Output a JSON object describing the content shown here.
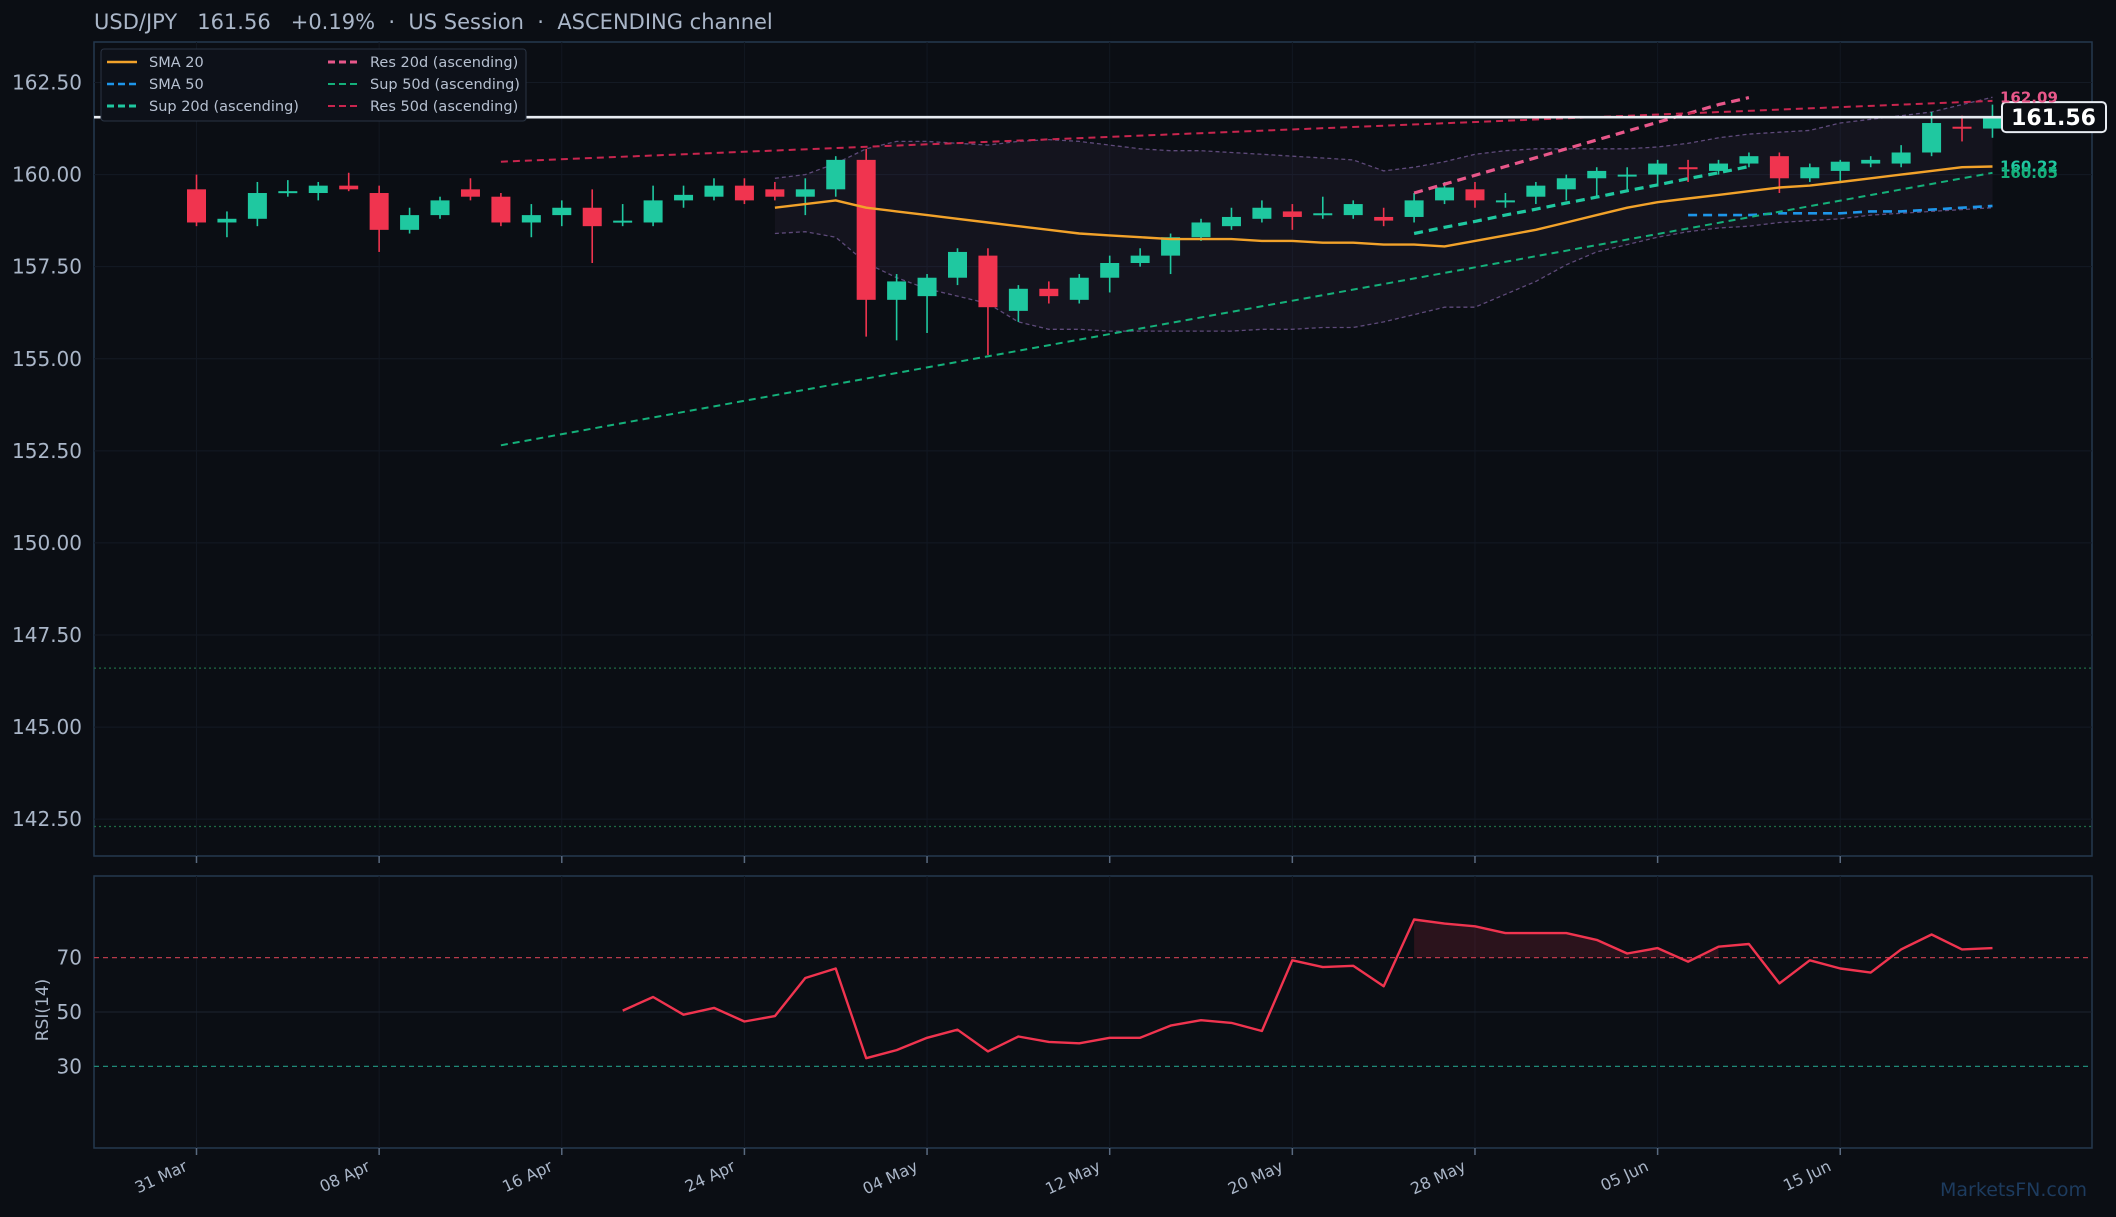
{
  "header": {
    "symbol": "USD/JPY",
    "price": "161.56",
    "change": "+0.19%",
    "session": "US Session",
    "channel": "ASCENDING channel"
  },
  "watermark": "MarketsFN.com",
  "colors": {
    "bg": "#0b0e14",
    "up": "#1fc8a0",
    "down": "#f0344f",
    "sma20": "#f2a22a",
    "sma50": "#1e96ea",
    "res20": "#e8578a",
    "sup20": "#1fc8a0",
    "res50": "#c8254e",
    "sup50": "#14b07a",
    "rsi": "#f0344f"
  },
  "chart_data": [
    {
      "type": "candlestick",
      "title": "USD/JPY 161.56 +0.19% · US Session · ASCENDING channel",
      "ylim": [
        141.5,
        163.6
      ],
      "yticks": [
        "162.50",
        "160.00",
        "157.50",
        "155.00",
        "152.50",
        "150.00",
        "147.50",
        "145.00",
        "142.50"
      ],
      "ytick_values": [
        162.5,
        160.0,
        157.5,
        155.0,
        152.5,
        150.0,
        147.5,
        145.0,
        142.5
      ],
      "xticks": [
        "31 Mar",
        "08 Apr",
        "16 Apr",
        "24 Apr",
        "04 May",
        "12 May",
        "20 May",
        "28 May",
        "05 Jun",
        "15 Jun"
      ],
      "xtick_index": [
        0,
        6,
        12,
        18,
        24,
        30,
        36,
        42,
        48,
        54
      ],
      "legend": {
        "position": "top-left",
        "entries": [
          "SMA 20",
          "Res 20d (ascending)",
          "SMA 50",
          "Sup 50d (ascending)",
          "Sup 20d (ascending)",
          "Res 50d (ascending)"
        ]
      },
      "last_price": 161.56,
      "last_price_label": "161.56",
      "end_labels": [
        {
          "text": "162.09",
          "value": 162.09,
          "series": "Res 20d (ascending)"
        },
        {
          "text": "160.22",
          "value": 160.22,
          "series": "Sup 20d (ascending)"
        },
        {
          "text": "160.05",
          "value": 160.05,
          "series": "Sup 50d (ascending)"
        }
      ],
      "reference_lines": [
        146.6,
        142.3
      ],
      "candles": [
        {
          "o": 159.6,
          "h": 160.0,
          "l": 158.6,
          "c": 158.7
        },
        {
          "o": 158.7,
          "h": 159.0,
          "l": 158.3,
          "c": 158.8
        },
        {
          "o": 158.8,
          "h": 159.8,
          "l": 158.6,
          "c": 159.5
        },
        {
          "o": 159.5,
          "h": 159.85,
          "l": 159.4,
          "c": 159.55
        },
        {
          "o": 159.5,
          "h": 159.8,
          "l": 159.3,
          "c": 159.7
        },
        {
          "o": 159.7,
          "h": 160.05,
          "l": 159.55,
          "c": 159.6
        },
        {
          "o": 159.5,
          "h": 159.7,
          "l": 157.9,
          "c": 158.5
        },
        {
          "o": 158.5,
          "h": 159.1,
          "l": 158.4,
          "c": 158.9
        },
        {
          "o": 158.9,
          "h": 159.4,
          "l": 158.8,
          "c": 159.3
        },
        {
          "o": 159.6,
          "h": 159.9,
          "l": 159.3,
          "c": 159.4
        },
        {
          "o": 159.4,
          "h": 159.5,
          "l": 158.6,
          "c": 158.7
        },
        {
          "o": 158.7,
          "h": 159.2,
          "l": 158.3,
          "c": 158.9
        },
        {
          "o": 158.9,
          "h": 159.3,
          "l": 158.6,
          "c": 159.1
        },
        {
          "o": 159.1,
          "h": 159.6,
          "l": 157.6,
          "c": 158.6
        },
        {
          "o": 158.7,
          "h": 159.2,
          "l": 158.6,
          "c": 158.75
        },
        {
          "o": 158.7,
          "h": 159.7,
          "l": 158.6,
          "c": 159.3
        },
        {
          "o": 159.3,
          "h": 159.7,
          "l": 159.1,
          "c": 159.45
        },
        {
          "o": 159.4,
          "h": 159.9,
          "l": 159.3,
          "c": 159.7
        },
        {
          "o": 159.7,
          "h": 159.9,
          "l": 159.2,
          "c": 159.3
        },
        {
          "o": 159.6,
          "h": 159.8,
          "l": 159.3,
          "c": 159.4
        },
        {
          "o": 159.4,
          "h": 159.9,
          "l": 158.9,
          "c": 159.6
        },
        {
          "o": 159.6,
          "h": 160.5,
          "l": 159.4,
          "c": 160.4
        },
        {
          "o": 160.4,
          "h": 160.7,
          "l": 155.6,
          "c": 156.6
        },
        {
          "o": 156.6,
          "h": 157.3,
          "l": 155.5,
          "c": 157.1
        },
        {
          "o": 156.7,
          "h": 157.3,
          "l": 155.7,
          "c": 157.2
        },
        {
          "o": 157.2,
          "h": 158.0,
          "l": 157.0,
          "c": 157.9
        },
        {
          "o": 157.8,
          "h": 158.0,
          "l": 155.1,
          "c": 156.4
        },
        {
          "o": 156.3,
          "h": 157.0,
          "l": 156.0,
          "c": 156.9
        },
        {
          "o": 156.9,
          "h": 157.1,
          "l": 156.5,
          "c": 156.7
        },
        {
          "o": 156.6,
          "h": 157.3,
          "l": 156.5,
          "c": 157.2
        },
        {
          "o": 157.2,
          "h": 157.8,
          "l": 156.8,
          "c": 157.6
        },
        {
          "o": 157.6,
          "h": 158.0,
          "l": 157.5,
          "c": 157.8
        },
        {
          "o": 157.8,
          "h": 158.4,
          "l": 157.3,
          "c": 158.3
        },
        {
          "o": 158.3,
          "h": 158.8,
          "l": 158.2,
          "c": 158.7
        },
        {
          "o": 158.6,
          "h": 159.1,
          "l": 158.5,
          "c": 158.85
        },
        {
          "o": 158.8,
          "h": 159.3,
          "l": 158.7,
          "c": 159.1
        },
        {
          "o": 159.0,
          "h": 159.2,
          "l": 158.5,
          "c": 158.85
        },
        {
          "o": 158.9,
          "h": 159.4,
          "l": 158.8,
          "c": 158.95
        },
        {
          "o": 158.9,
          "h": 159.3,
          "l": 158.8,
          "c": 159.2
        },
        {
          "o": 158.85,
          "h": 159.1,
          "l": 158.6,
          "c": 158.75
        },
        {
          "o": 158.85,
          "h": 159.5,
          "l": 158.7,
          "c": 159.3
        },
        {
          "o": 159.3,
          "h": 159.8,
          "l": 159.2,
          "c": 159.65
        },
        {
          "o": 159.6,
          "h": 159.8,
          "l": 159.1,
          "c": 159.3
        },
        {
          "o": 159.25,
          "h": 159.5,
          "l": 159.1,
          "c": 159.3
        },
        {
          "o": 159.4,
          "h": 159.8,
          "l": 159.2,
          "c": 159.7
        },
        {
          "o": 159.6,
          "h": 160.0,
          "l": 159.3,
          "c": 159.9
        },
        {
          "o": 159.9,
          "h": 160.2,
          "l": 159.4,
          "c": 160.1
        },
        {
          "o": 160.0,
          "h": 160.2,
          "l": 159.6,
          "c": 160.0
        },
        {
          "o": 160.0,
          "h": 160.4,
          "l": 159.7,
          "c": 160.3
        },
        {
          "o": 160.2,
          "h": 160.4,
          "l": 159.8,
          "c": 160.15
        },
        {
          "o": 160.1,
          "h": 160.4,
          "l": 160.0,
          "c": 160.3
        },
        {
          "o": 160.3,
          "h": 160.6,
          "l": 160.2,
          "c": 160.5
        },
        {
          "o": 160.5,
          "h": 160.6,
          "l": 159.5,
          "c": 159.9
        },
        {
          "o": 159.9,
          "h": 160.3,
          "l": 159.8,
          "c": 160.2
        },
        {
          "o": 160.1,
          "h": 160.4,
          "l": 159.8,
          "c": 160.35
        },
        {
          "o": 160.3,
          "h": 160.5,
          "l": 160.2,
          "c": 160.4
        },
        {
          "o": 160.3,
          "h": 160.8,
          "l": 160.2,
          "c": 160.6
        },
        {
          "o": 160.6,
          "h": 161.7,
          "l": 160.5,
          "c": 161.4
        },
        {
          "o": 161.3,
          "h": 161.6,
          "l": 160.9,
          "c": 161.25
        },
        {
          "o": 161.25,
          "h": 161.9,
          "l": 161.0,
          "c": 161.56
        }
      ],
      "series": [
        {
          "name": "SMA 20",
          "style": "solid",
          "start": 19,
          "values": [
            159.1,
            159.2,
            159.3,
            159.1,
            159.0,
            158.9,
            158.8,
            158.7,
            158.6,
            158.5,
            158.4,
            158.35,
            158.3,
            158.25,
            158.25,
            158.25,
            158.2,
            158.2,
            158.15,
            158.15,
            158.1,
            158.1,
            158.05,
            158.2,
            158.35,
            158.5,
            158.7,
            158.9,
            159.1,
            159.25,
            159.35,
            159.45,
            159.55,
            159.65,
            159.7,
            159.8,
            159.9,
            160.0,
            160.1,
            160.2,
            160.22
          ]
        },
        {
          "name": "SMA 50",
          "style": "dashed",
          "start": 49,
          "values": [
            158.9,
            158.9,
            158.9,
            158.95,
            158.95,
            158.95,
            159.0,
            159.0,
            159.05,
            159.1,
            159.15
          ]
        },
        {
          "name": "Res 20d (ascending)",
          "style": "dashed",
          "start": 40,
          "values": [
            159.5,
            159.74,
            159.98,
            160.22,
            160.46,
            160.7,
            160.94,
            161.18,
            161.42,
            161.66,
            161.9,
            162.09
          ]
        },
        {
          "name": "Sup 20d (ascending)",
          "style": "dashed",
          "start": 40,
          "values": [
            158.4,
            158.57,
            158.73,
            158.9,
            159.06,
            159.23,
            159.39,
            159.56,
            159.72,
            159.89,
            160.05,
            160.22
          ]
        },
        {
          "name": "Sup 50d (ascending)",
          "style": "dashed",
          "start": 10,
          "values": [
            152.65,
            160.05
          ]
        },
        {
          "name": "Res 50d (ascending)",
          "style": "dashed",
          "start": 10,
          "values": [
            160.35,
            162.0
          ]
        }
      ],
      "band_upper": {
        "start": 19,
        "values": [
          159.9,
          160.0,
          160.3,
          160.7,
          160.9,
          160.9,
          160.85,
          160.8,
          160.9,
          160.95,
          160.9,
          160.8,
          160.7,
          160.65,
          160.65,
          160.6,
          160.55,
          160.5,
          160.45,
          160.4,
          160.1,
          160.2,
          160.35,
          160.55,
          160.65,
          160.7,
          160.7,
          160.7,
          160.7,
          160.75,
          160.85,
          161.0,
          161.1,
          161.15,
          161.2,
          161.4,
          161.5,
          161.6,
          161.7,
          161.9,
          162.1
        ]
      },
      "band_lower": {
        "start": 19,
        "values": [
          158.4,
          158.45,
          158.3,
          157.6,
          157.2,
          156.9,
          156.7,
          156.5,
          156.0,
          155.8,
          155.8,
          155.75,
          155.75,
          155.75,
          155.75,
          155.75,
          155.8,
          155.8,
          155.85,
          155.85,
          156.0,
          156.2,
          156.4,
          156.4,
          156.75,
          157.1,
          157.55,
          157.9,
          158.1,
          158.3,
          158.45,
          158.55,
          158.6,
          158.7,
          158.75,
          158.8,
          158.9,
          158.95,
          159.0,
          159.05,
          159.1
        ]
      }
    },
    {
      "type": "line",
      "ylabel": "RSI(14)",
      "ylim": [
        0,
        100
      ],
      "yticks": [
        "70",
        "50",
        "30"
      ],
      "ytick_values": [
        70,
        50,
        30
      ],
      "thresholds": [
        70,
        30
      ],
      "series": [
        {
          "name": "RSI(14)",
          "start": 14,
          "values": [
            50.5,
            55.5,
            49,
            51.5,
            46.5,
            48.5,
            62.5,
            66,
            33,
            36,
            40.5,
            43.5,
            35.5,
            41,
            39,
            38.5,
            40.5,
            40.5,
            45,
            47,
            46,
            43,
            69,
            66.5,
            67,
            59.5,
            84,
            82.5,
            81.5,
            79,
            79,
            79,
            76.5,
            71.5,
            73.5,
            68.5,
            74,
            75,
            60.5,
            69,
            66,
            64.5,
            73,
            78.5,
            73,
            73.5
          ]
        }
      ]
    }
  ]
}
